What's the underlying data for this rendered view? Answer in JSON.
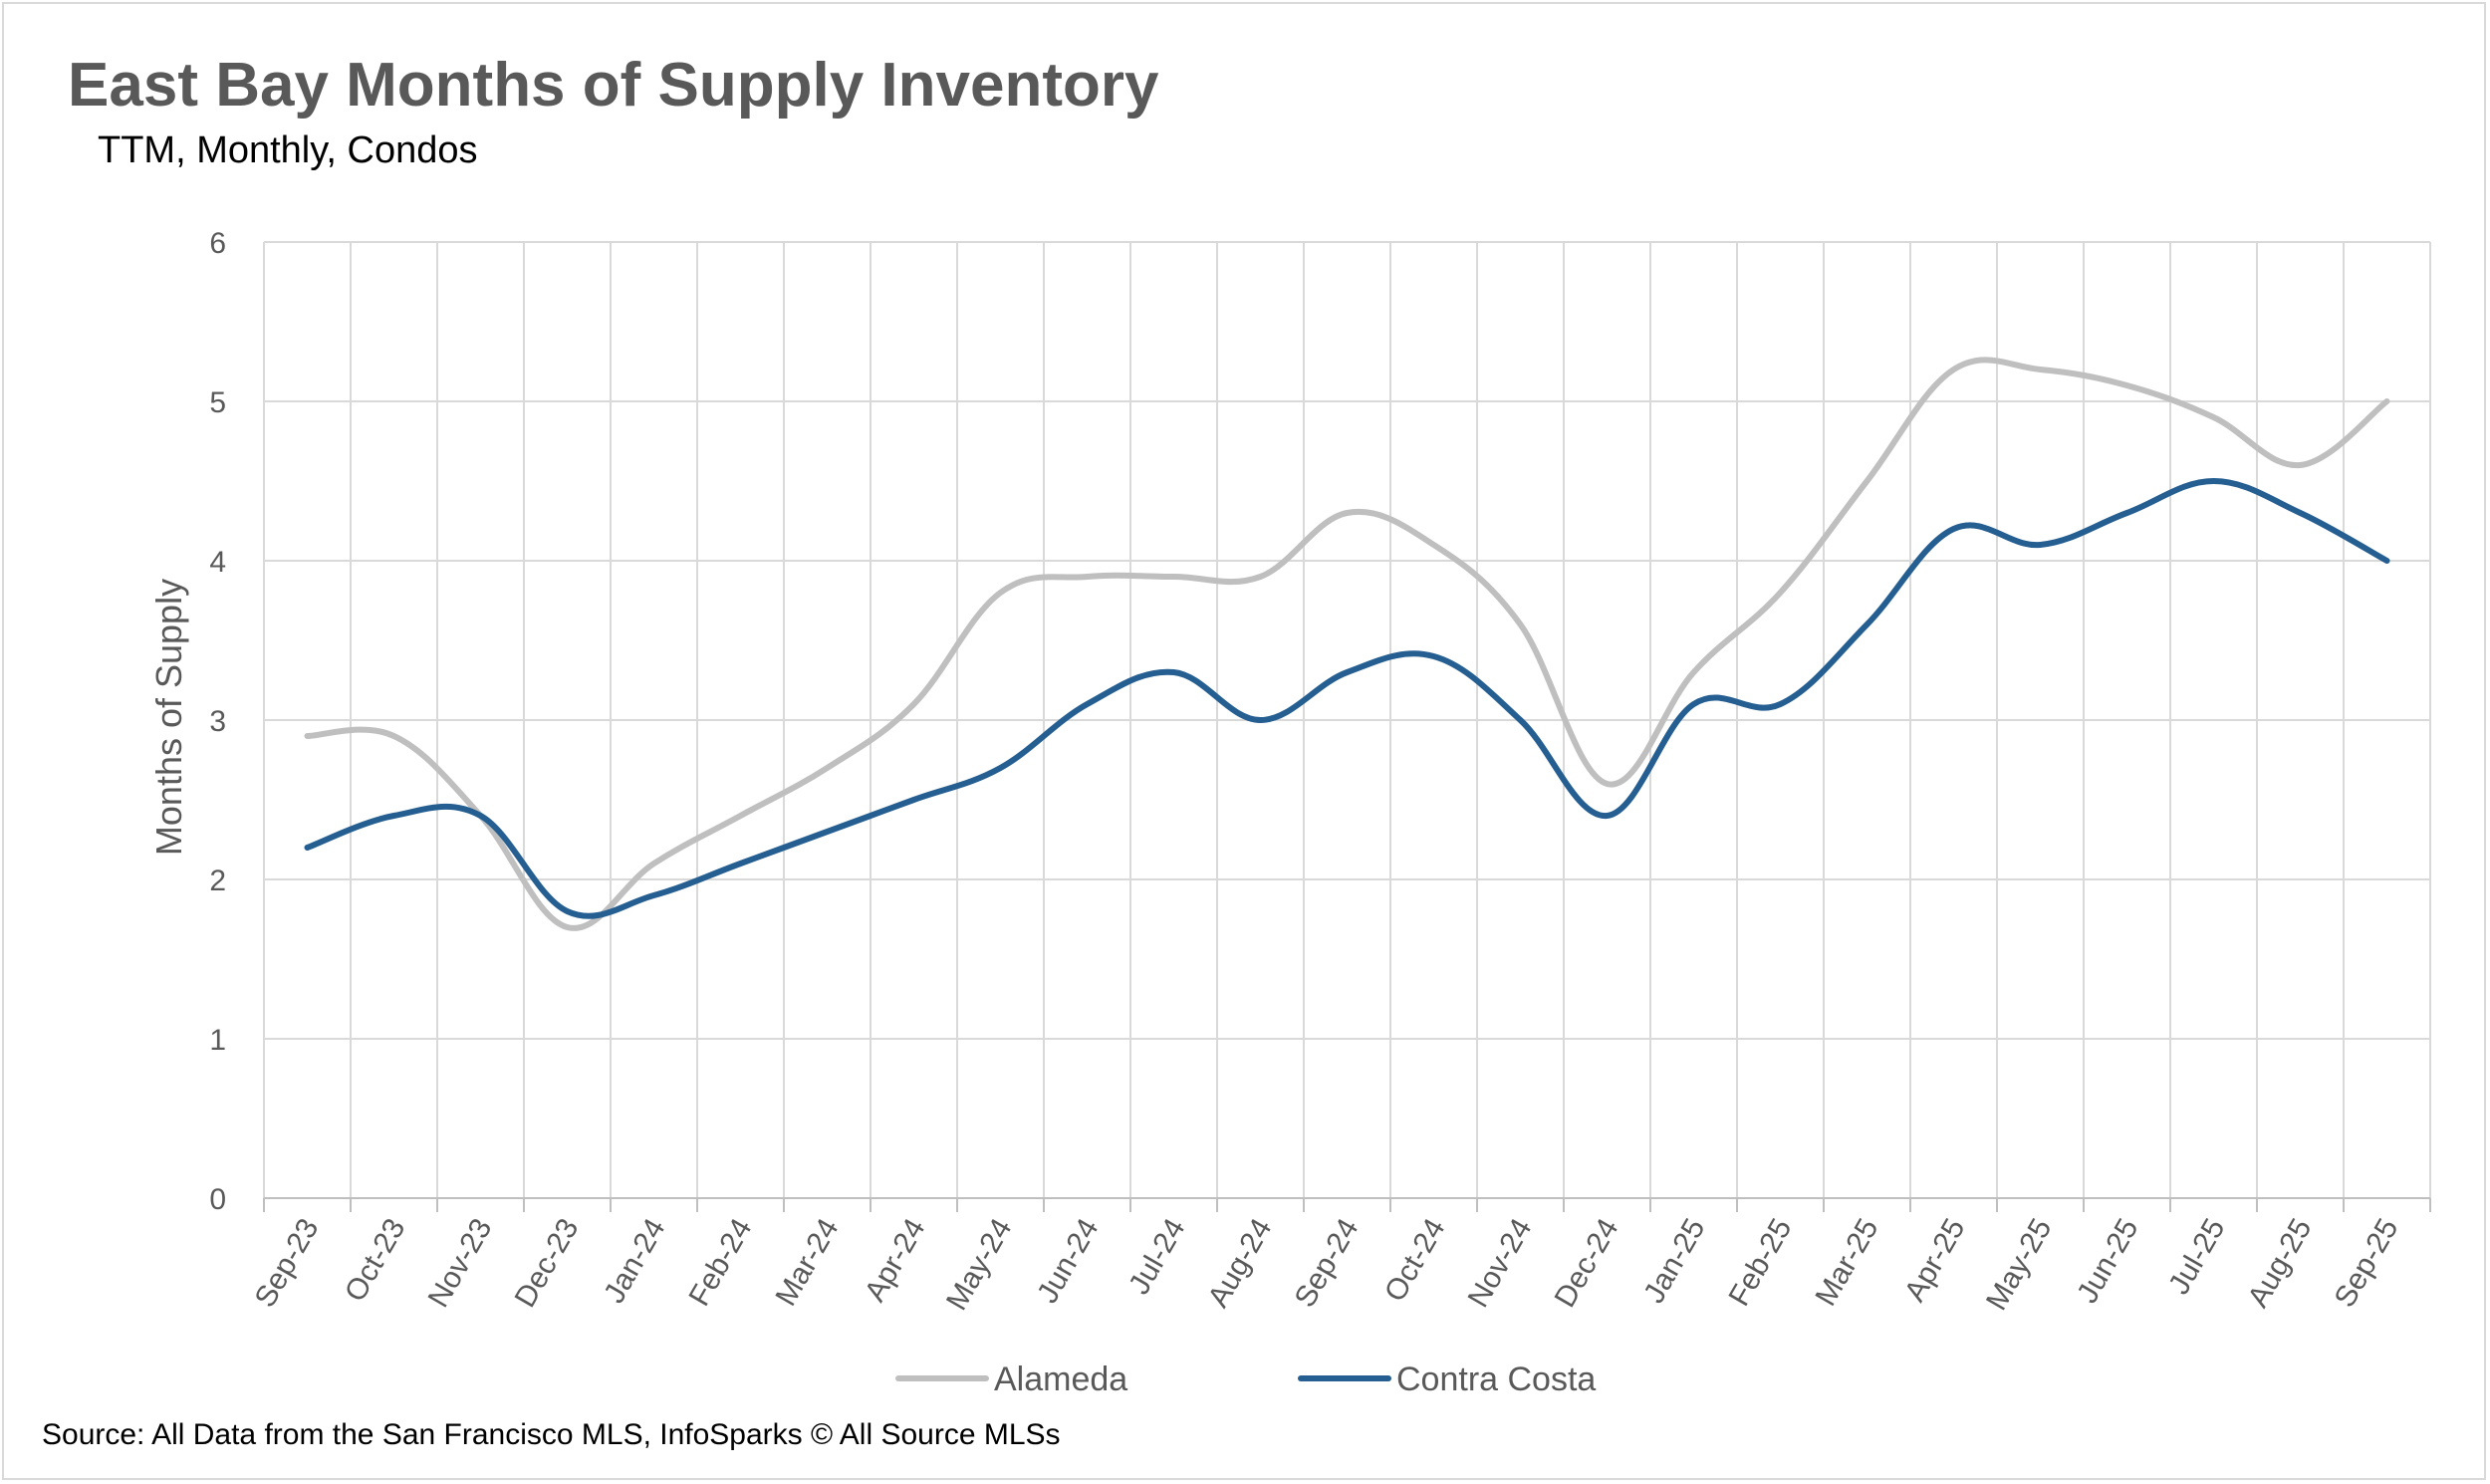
{
  "title": "East Bay Months of Supply Inventory",
  "subtitle": "TTM, Monthly, Condos",
  "source": "Source: All Data from the San Francisco MLS, InfoSparks © All Source MLSs",
  "chart_data": {
    "type": "line",
    "title": "East Bay Months of Supply Inventory",
    "subtitle": "TTM, Monthly, Condos",
    "xlabel": "",
    "ylabel": "Months of Supply",
    "ylim": [
      0,
      6
    ],
    "yticks": [
      "0",
      "1",
      "2",
      "3",
      "4",
      "5",
      "6"
    ],
    "grid": true,
    "legend_position": "bottom",
    "categories": [
      "Sep-23",
      "Oct-23",
      "Nov-23",
      "Dec-23",
      "Jan-24",
      "Feb-24",
      "Mar-24",
      "Apr-24",
      "May-24",
      "Jun-24",
      "Jul-24",
      "Aug-24",
      "Sep-24",
      "Oct-24",
      "Nov-24",
      "Dec-24",
      "Jan-25",
      "Feb-25",
      "Mar-25",
      "Apr-25",
      "May-25",
      "Jun-25",
      "Jul-25",
      "Aug-25",
      "Sep-25"
    ],
    "series": [
      {
        "name": "Alameda",
        "color": "#bfbfbf",
        "values": [
          2.9,
          2.9,
          2.4,
          1.7,
          2.1,
          2.4,
          2.7,
          3.1,
          3.8,
          3.9,
          3.9,
          3.9,
          4.3,
          4.1,
          3.6,
          2.6,
          3.3,
          3.8,
          4.5,
          5.2,
          5.2,
          5.1,
          4.9,
          4.6,
          5.0
        ]
      },
      {
        "name": "Contra Costa",
        "color": "#255e91",
        "values": [
          2.2,
          2.4,
          2.4,
          1.8,
          1.9,
          2.1,
          2.3,
          2.5,
          2.7,
          3.1,
          3.3,
          3.0,
          3.3,
          3.4,
          3.0,
          2.4,
          3.1,
          3.1,
          3.6,
          4.2,
          4.1,
          4.3,
          4.5,
          4.3,
          4.0
        ]
      }
    ]
  }
}
